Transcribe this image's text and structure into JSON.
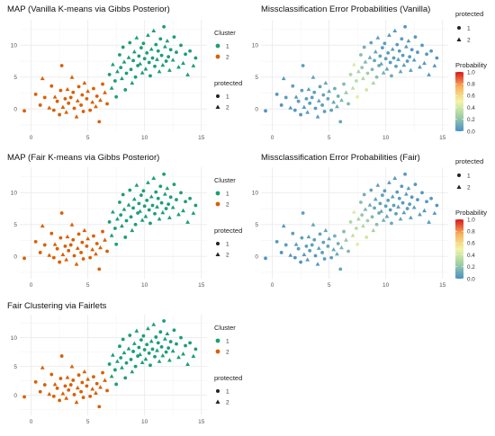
{
  "colors": {
    "cluster_1": "#1b9e77",
    "cluster_2": "#d95f02",
    "panel_bg": "#ffffff",
    "grid": "#ebebeb",
    "text": "#333333",
    "probability_gradient": [
      "#4a90c4",
      "#9fd0a4",
      "#f2f5a8",
      "#f8b35c",
      "#d7191c"
    ]
  },
  "shared_axes": {
    "xticks": [
      0,
      5,
      10,
      15
    ],
    "yticks": [
      0,
      5,
      10
    ],
    "xlim": [
      -1,
      15.5
    ],
    "ylim": [
      -3.5,
      14
    ]
  },
  "legends": {
    "cluster": {
      "title": "Cluster",
      "labels": [
        "1",
        "2"
      ]
    },
    "protected": {
      "title": "protected",
      "labels": [
        "1",
        "2"
      ]
    },
    "probability": {
      "title": "Probability",
      "ticks": [
        "1.0",
        "0.8",
        "0.6",
        "0.4",
        "0.2",
        "0.0"
      ]
    }
  },
  "points": [
    [
      -0.6,
      -0.3,
      2,
      1,
      0.02
    ],
    [
      0.4,
      2.3,
      2,
      1,
      0.03
    ],
    [
      0.8,
      0.6,
      2,
      1,
      0.02
    ],
    [
      1.0,
      4.8,
      2,
      2,
      0.04
    ],
    [
      1.2,
      1.8,
      2,
      1,
      0.05
    ],
    [
      1.6,
      0.2,
      2,
      2,
      0.03
    ],
    [
      1.8,
      3.6,
      2,
      1,
      0.06
    ],
    [
      2.0,
      -0.2,
      2,
      1,
      0.02
    ],
    [
      2.1,
      1.9,
      2,
      2,
      0.04
    ],
    [
      2.3,
      1.2,
      2,
      1,
      0.05
    ],
    [
      2.5,
      -0.9,
      2,
      1,
      0.03
    ],
    [
      2.6,
      2.9,
      2,
      1,
      0.06
    ],
    [
      2.7,
      6.8,
      2,
      1,
      0.05
    ],
    [
      2.8,
      0.3,
      2,
      2,
      0.04
    ],
    [
      3.0,
      1.6,
      2,
      1,
      0.05
    ],
    [
      3.1,
      -0.5,
      2,
      2,
      0.03
    ],
    [
      3.2,
      3.1,
      2,
      2,
      0.06
    ],
    [
      3.3,
      0.9,
      2,
      1,
      0.05
    ],
    [
      3.5,
      1.8,
      2,
      1,
      0.06
    ],
    [
      3.6,
      5.0,
      2,
      2,
      0.07
    ],
    [
      3.7,
      2.6,
      2,
      1,
      0.06
    ],
    [
      3.8,
      0.1,
      2,
      1,
      0.04
    ],
    [
      4.0,
      -1.2,
      2,
      2,
      0.04
    ],
    [
      4.1,
      1.3,
      2,
      2,
      0.06
    ],
    [
      4.2,
      3.5,
      2,
      1,
      0.07
    ],
    [
      4.4,
      0.6,
      2,
      1,
      0.05
    ],
    [
      4.5,
      2.2,
      2,
      1,
      0.07
    ],
    [
      4.6,
      -0.4,
      2,
      1,
      0.05
    ],
    [
      4.7,
      4.1,
      2,
      2,
      0.09
    ],
    [
      4.9,
      1.6,
      2,
      1,
      0.07
    ],
    [
      5.0,
      2.8,
      2,
      2,
      0.08
    ],
    [
      5.2,
      -0.2,
      2,
      1,
      0.06
    ],
    [
      5.4,
      1.1,
      2,
      2,
      0.08
    ],
    [
      5.5,
      3.2,
      2,
      1,
      0.12
    ],
    [
      5.7,
      0.4,
      2,
      2,
      0.09
    ],
    [
      5.8,
      2.0,
      2,
      1,
      0.12
    ],
    [
      6.0,
      -2.0,
      2,
      1,
      0.08
    ],
    [
      6.1,
      1.4,
      2,
      2,
      0.14
    ],
    [
      6.3,
      3.9,
      2,
      1,
      0.18
    ],
    [
      6.5,
      2.6,
      2,
      2,
      0.22
    ],
    [
      6.7,
      0.8,
      2,
      1,
      0.16
    ],
    [
      6.9,
      5.4,
      1,
      1,
      0.3
    ],
    [
      7.1,
      3.3,
      1,
      2,
      0.35
    ],
    [
      7.2,
      7.0,
      1,
      2,
      0.42
    ],
    [
      7.4,
      4.4,
      1,
      1,
      0.33
    ],
    [
      7.5,
      1.9,
      1,
      1,
      0.45
    ],
    [
      7.6,
      5.9,
      1,
      2,
      0.28
    ],
    [
      7.8,
      8.5,
      1,
      1,
      0.18
    ],
    [
      7.9,
      6.5,
      1,
      1,
      0.22
    ],
    [
      8.0,
      4.8,
      1,
      2,
      0.3
    ],
    [
      8.1,
      9.7,
      1,
      1,
      0.12
    ],
    [
      8.2,
      7.4,
      1,
      2,
      0.15
    ],
    [
      8.3,
      3.0,
      1,
      1,
      0.4
    ],
    [
      8.4,
      5.6,
      1,
      1,
      0.25
    ],
    [
      8.6,
      8.1,
      1,
      2,
      0.1
    ],
    [
      8.7,
      10.4,
      1,
      1,
      0.08
    ],
    [
      8.8,
      6.2,
      1,
      1,
      0.16
    ],
    [
      8.9,
      4.1,
      1,
      2,
      0.28
    ],
    [
      9.0,
      7.6,
      1,
      1,
      0.09
    ],
    [
      9.1,
      9.0,
      1,
      2,
      0.07
    ],
    [
      9.2,
      5.0,
      1,
      1,
      0.18
    ],
    [
      9.3,
      11.2,
      1,
      2,
      0.05
    ],
    [
      9.4,
      6.8,
      1,
      1,
      0.1
    ],
    [
      9.5,
      8.3,
      1,
      1,
      0.06
    ],
    [
      9.6,
      7.1,
      1,
      2,
      0.08
    ],
    [
      9.7,
      9.6,
      1,
      1,
      0.05
    ],
    [
      9.8,
      5.7,
      1,
      2,
      0.12
    ],
    [
      9.9,
      10.3,
      1,
      1,
      0.05
    ],
    [
      10.0,
      7.9,
      1,
      1,
      0.06
    ],
    [
      10.1,
      6.3,
      1,
      2,
      0.08
    ],
    [
      10.2,
      8.8,
      1,
      1,
      0.05
    ],
    [
      10.3,
      11.6,
      1,
      2,
      0.04
    ],
    [
      10.4,
      7.3,
      1,
      1,
      0.05
    ],
    [
      10.5,
      5.2,
      1,
      1,
      0.1
    ],
    [
      10.6,
      9.4,
      1,
      2,
      0.04
    ],
    [
      10.7,
      8.0,
      1,
      1,
      0.05
    ],
    [
      10.8,
      12.3,
      1,
      2,
      0.04
    ],
    [
      10.9,
      6.7,
      1,
      1,
      0.06
    ],
    [
      11.0,
      10.1,
      1,
      1,
      0.04
    ],
    [
      11.1,
      7.8,
      1,
      2,
      0.05
    ],
    [
      11.2,
      9.1,
      1,
      1,
      0.04
    ],
    [
      11.3,
      5.9,
      1,
      2,
      0.07
    ],
    [
      11.4,
      11.0,
      1,
      1,
      0.04
    ],
    [
      11.5,
      8.4,
      1,
      1,
      0.04
    ],
    [
      11.6,
      6.9,
      1,
      2,
      0.05
    ],
    [
      11.7,
      12.9,
      1,
      1,
      0.03
    ],
    [
      11.8,
      9.8,
      1,
      2,
      0.04
    ],
    [
      11.9,
      7.5,
      1,
      1,
      0.04
    ],
    [
      12.0,
      10.7,
      1,
      2,
      0.03
    ],
    [
      12.1,
      8.2,
      1,
      1,
      0.04
    ],
    [
      12.2,
      6.1,
      1,
      2,
      0.05
    ],
    [
      12.3,
      9.3,
      1,
      1,
      0.03
    ],
    [
      12.5,
      7.7,
      1,
      2,
      0.04
    ],
    [
      12.6,
      11.3,
      1,
      1,
      0.03
    ],
    [
      12.8,
      8.9,
      1,
      1,
      0.03
    ],
    [
      13.0,
      6.6,
      1,
      2,
      0.04
    ],
    [
      13.2,
      10.0,
      1,
      1,
      0.03
    ],
    [
      13.4,
      7.2,
      1,
      2,
      0.03
    ],
    [
      13.6,
      8.6,
      1,
      1,
      0.03
    ],
    [
      13.8,
      5.4,
      1,
      2,
      0.04
    ],
    [
      14.0,
      9.1,
      1,
      1,
      0.03
    ],
    [
      14.3,
      6.8,
      1,
      2,
      0.03
    ],
    [
      14.5,
      8.0,
      1,
      1,
      0.03
    ]
  ],
  "chart_data": [
    {
      "type": "scatter",
      "title": "MAP (Vanilla K-means via Gibbs Posterior)",
      "xlabel": "",
      "ylabel": "",
      "xlim": [
        -1,
        15.5
      ],
      "ylim": [
        -3.5,
        14
      ],
      "color_by": "cluster",
      "shape_by": "protected",
      "legend": "right",
      "grid": true
    },
    {
      "type": "scatter",
      "title": "Missclassification Error Probabilities (Vanilla)",
      "xlabel": "",
      "ylabel": "",
      "xlim": [
        -1,
        15.5
      ],
      "ylim": [
        -3.5,
        14
      ],
      "color_by": "probability",
      "shape_by": "protected",
      "legend": "right",
      "grid": true
    },
    {
      "type": "scatter",
      "title": "MAP (Fair K-means via Gibbs Posterior)",
      "xlabel": "",
      "ylabel": "",
      "xlim": [
        -1,
        15.5
      ],
      "ylim": [
        -3.5,
        14
      ],
      "color_by": "cluster",
      "shape_by": "protected",
      "legend": "right",
      "grid": true
    },
    {
      "type": "scatter",
      "title": "Missclassification Error Probabilities (Fair)",
      "xlabel": "",
      "ylabel": "",
      "xlim": [
        -1,
        15.5
      ],
      "ylim": [
        -3.5,
        14
      ],
      "color_by": "probability",
      "shape_by": "protected",
      "legend": "right",
      "grid": true
    },
    {
      "type": "scatter",
      "title": "Fair Clustering via Fairlets",
      "xlabel": "",
      "ylabel": "",
      "xlim": [
        -1,
        15.5
      ],
      "ylim": [
        -3.5,
        14
      ],
      "color_by": "cluster",
      "shape_by": "protected",
      "legend": "right",
      "grid": true
    }
  ]
}
